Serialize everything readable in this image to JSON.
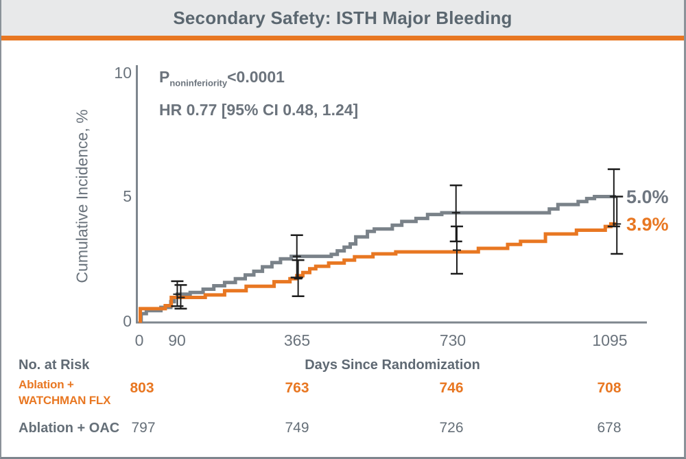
{
  "header": {
    "title": "Secondary Safety: ISTH Major Bleeding"
  },
  "colors": {
    "accent_orange": "#E87722",
    "curve_gray": "#7A8289",
    "axis_gray": "#7E868E",
    "error_bar_black": "#1c1c1c",
    "title_text": "#5B6770",
    "header_bg": "#E8E9EA"
  },
  "chart_data": {
    "type": "line",
    "subtype": "kaplan-meier-step",
    "title": "Secondary Safety: ISTH Major Bleeding",
    "xlabel": "Days Since Randomization",
    "ylabel": "Cumulative Incidence, %",
    "xlim": [
      0,
      1180
    ],
    "ylim": [
      0,
      10
    ],
    "xticks": [
      "0",
      "90",
      "365",
      "730",
      "1095"
    ],
    "yticks": [
      "0",
      "5",
      "10"
    ],
    "grid": false,
    "legend_position": "none",
    "annotations": {
      "p_prefix": "P",
      "p_sub": "noninferiority",
      "p_value": "<0.0001",
      "hr_line": "HR 0.77 [95% CI 0.48, 1.24]"
    },
    "series": [
      {
        "name": "Ablation + OAC",
        "color": "#7A8289",
        "end_label": "5.0%",
        "end_value_pct": 5.0,
        "end_day": 1110,
        "steps": [
          [
            0,
            0
          ],
          [
            6,
            0.3
          ],
          [
            18,
            0.42
          ],
          [
            52,
            0.55
          ],
          [
            75,
            0.78
          ],
          [
            83,
            0.95
          ],
          [
            90,
            1.08
          ],
          [
            120,
            1.15
          ],
          [
            150,
            1.28
          ],
          [
            175,
            1.42
          ],
          [
            200,
            1.55
          ],
          [
            225,
            1.7
          ],
          [
            248,
            1.85
          ],
          [
            268,
            2.0
          ],
          [
            288,
            2.18
          ],
          [
            310,
            2.35
          ],
          [
            330,
            2.5
          ],
          [
            355,
            2.6
          ],
          [
            448,
            2.68
          ],
          [
            462,
            2.82
          ],
          [
            478,
            2.97
          ],
          [
            492,
            3.1
          ],
          [
            505,
            3.38
          ],
          [
            532,
            3.6
          ],
          [
            548,
            3.7
          ],
          [
            590,
            3.85
          ],
          [
            612,
            4.0
          ],
          [
            645,
            4.12
          ],
          [
            672,
            4.28
          ],
          [
            705,
            4.35
          ],
          [
            955,
            4.5
          ],
          [
            975,
            4.68
          ],
          [
            1022,
            4.8
          ],
          [
            1042,
            4.92
          ],
          [
            1060,
            5.0
          ]
        ],
        "error_bars": [
          {
            "day": 90,
            "mid": 1.08,
            "lo": 0.6,
            "hi": 1.6
          },
          {
            "day": 368,
            "mid": 2.6,
            "lo": 1.75,
            "hi": 3.45
          },
          {
            "day": 738,
            "mid": 4.35,
            "lo": 3.2,
            "hi": 5.45
          },
          {
            "day": 1105,
            "mid": 5.0,
            "lo": 3.8,
            "hi": 6.1
          }
        ]
      },
      {
        "name": "Ablation + WATCHMAN FLX",
        "color": "#E87722",
        "end_label": "3.9%",
        "end_value_pct": 3.9,
        "end_day": 1110,
        "steps": [
          [
            0,
            0
          ],
          [
            4,
            0.5
          ],
          [
            62,
            0.62
          ],
          [
            76,
            0.95
          ],
          [
            155,
            1.05
          ],
          [
            200,
            1.22
          ],
          [
            250,
            1.4
          ],
          [
            315,
            1.58
          ],
          [
            352,
            1.7
          ],
          [
            368,
            1.82
          ],
          [
            382,
            1.95
          ],
          [
            398,
            2.1
          ],
          [
            412,
            2.2
          ],
          [
            442,
            2.33
          ],
          [
            478,
            2.45
          ],
          [
            502,
            2.58
          ],
          [
            545,
            2.7
          ],
          [
            598,
            2.78
          ],
          [
            790,
            2.92
          ],
          [
            858,
            3.08
          ],
          [
            888,
            3.2
          ],
          [
            946,
            3.5
          ],
          [
            1018,
            3.65
          ],
          [
            1085,
            3.8
          ],
          [
            1098,
            3.9
          ]
        ],
        "error_bars": [
          {
            "day": 98,
            "mid": 0.95,
            "lo": 0.5,
            "hi": 1.45
          },
          {
            "day": 371,
            "mid": 1.7,
            "lo": 1.0,
            "hi": 2.45
          },
          {
            "day": 740,
            "mid": 2.85,
            "lo": 1.9,
            "hi": 3.8
          },
          {
            "day": 1112,
            "mid": 3.9,
            "lo": 2.7,
            "hi": 5.0
          }
        ]
      }
    ]
  },
  "risk_table": {
    "header": "No. at Risk",
    "xaxis_title": "Days Since Randomization",
    "timepoints": [
      "0",
      "365",
      "730",
      "1095"
    ],
    "rows": [
      {
        "label_line1": "Ablation +",
        "label_line2": "WATCHMAN FLX",
        "values": [
          "803",
          "763",
          "746",
          "708"
        ]
      },
      {
        "label_line1": "Ablation + OAC",
        "label_line2": "",
        "values": [
          "797",
          "749",
          "726",
          "678"
        ]
      }
    ]
  }
}
